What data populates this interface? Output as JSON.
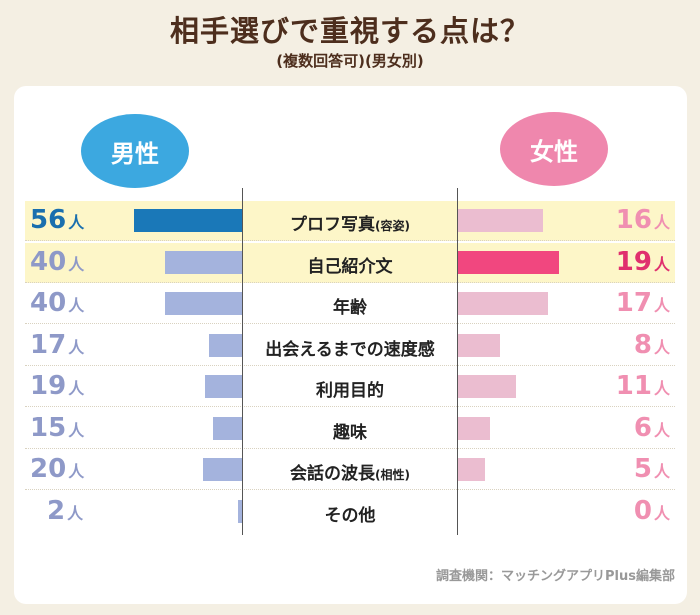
{
  "title": "相手選びで重視する点は？",
  "subtitle": "(複数回答可)(男女別)",
  "male_label": "男性",
  "female_label": "女性",
  "unit": "人",
  "source": "調査機関：マッチングアプリPlus編集部",
  "colors": {
    "male_accent": "#1a78b8",
    "male_bar": "#a4b3dd",
    "female_accent": "#f1477f",
    "female_bar": "#ebbdd0",
    "highlight_row": "#fdf6c8"
  },
  "chart_data": {
    "type": "bar",
    "orientation": "horizontal-butterfly",
    "categories": [
      {
        "main": "プロフ写真",
        "note": "(容姿)"
      },
      {
        "main": "自己紹介文",
        "note": ""
      },
      {
        "main": "年齢",
        "note": ""
      },
      {
        "main": "出会えるまでの速度感",
        "note": ""
      },
      {
        "main": "利用目的",
        "note": ""
      },
      {
        "main": "趣味",
        "note": ""
      },
      {
        "main": "会話の波長",
        "note": "(相性)"
      },
      {
        "main": "その他",
        "note": ""
      }
    ],
    "series": [
      {
        "name": "男性",
        "values": [
          56,
          40,
          40,
          17,
          19,
          15,
          20,
          2
        ],
        "highlight_index": 0
      },
      {
        "name": "女性",
        "values": [
          16,
          19,
          17,
          8,
          11,
          6,
          5,
          0
        ],
        "highlight_index": 1
      }
    ],
    "highlight_rows": [
      0,
      1
    ]
  }
}
